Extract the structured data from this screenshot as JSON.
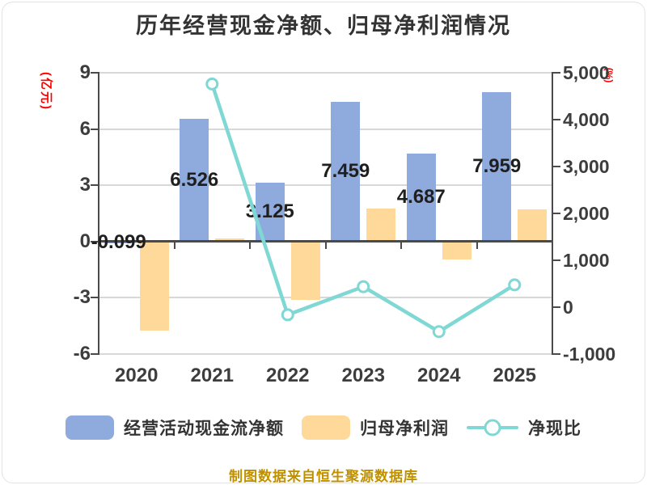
{
  "title": "历年经营现金净额、归母净利润情况",
  "footer": "制图数据来自恒生聚源数据库",
  "colors": {
    "bar_cash": "#8FAADC",
    "bar_profit": "#FFD999",
    "line_ratio": "#7FD8D3",
    "grid": "#D8D8D8",
    "axis_line": "#4A4A4A",
    "axis_text": "#3D3D3D",
    "data_label": "#1F1F1F",
    "unit_label": "#FF0000",
    "footer_text": "#BF9000",
    "title_text": "#333333"
  },
  "chart_data": {
    "type": "bar+line",
    "title": "历年经营现金净额、归母净利润情况",
    "categories": [
      "2020",
      "2021",
      "2022",
      "2023",
      "2024",
      "2025"
    ],
    "series": [
      {
        "name": "经营活动现金流净额",
        "type": "bar",
        "axis": "left",
        "color": "#8FAADC",
        "values": [
          -0.099,
          6.526,
          3.125,
          7.459,
          4.687,
          7.959
        ],
        "labels": [
          "-0.099",
          "6.526",
          "3.125",
          "7.459",
          "4.687",
          "7.959"
        ]
      },
      {
        "name": "归母净利润",
        "type": "bar",
        "axis": "left",
        "color": "#FFD999",
        "values": [
          -4.76,
          0.14,
          -3.15,
          1.73,
          -0.99,
          1.7
        ]
      },
      {
        "name": "净现比",
        "type": "line",
        "axis": "right",
        "color": "#7FD8D3",
        "values": [
          null,
          4760,
          -170,
          430,
          -530,
          470
        ]
      }
    ],
    "left_axis": {
      "unit": "(亿元)",
      "min": -6,
      "max": 9,
      "ticks": [
        9,
        6,
        3,
        0,
        -3,
        -6
      ]
    },
    "right_axis": {
      "unit": "(%)",
      "min": -1000,
      "max": 5000,
      "ticks": [
        5000,
        4000,
        3000,
        2000,
        1000,
        0,
        -1000
      ],
      "tick_labels": [
        "5,000",
        "4,000",
        "3,000",
        "2,000",
        "1,000",
        "0",
        "-1,000"
      ]
    },
    "grid": "horizontal",
    "legend_position": "bottom"
  }
}
